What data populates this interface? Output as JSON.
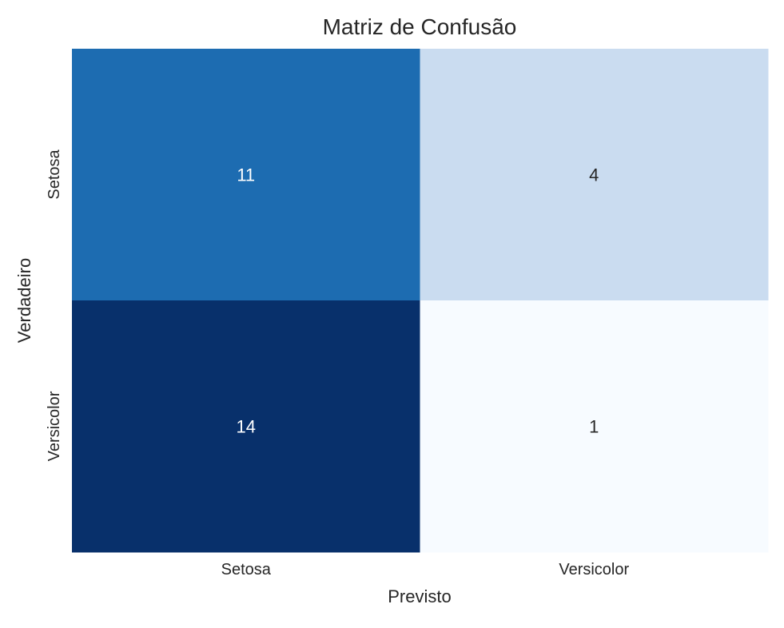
{
  "chart_data": {
    "type": "heatmap",
    "title": "Matriz de Confusão",
    "xlabel": "Previsto",
    "ylabel": "Verdadeiro",
    "x_categories": [
      "Setosa",
      "Versicolor"
    ],
    "y_categories": [
      "Setosa",
      "Versicolor"
    ],
    "values": [
      [
        11,
        4
      ],
      [
        14,
        1
      ]
    ],
    "colormap": "Blues",
    "color_range": [
      1,
      14
    ],
    "colorbar": false,
    "grid": false,
    "colors": {
      "cell_colors": [
        [
          "#1d6cb1",
          "#cadcf0"
        ],
        [
          "#08306b",
          "#f7fbff"
        ]
      ],
      "dark_text": "#262626",
      "light_text": "#ffffff"
    }
  }
}
